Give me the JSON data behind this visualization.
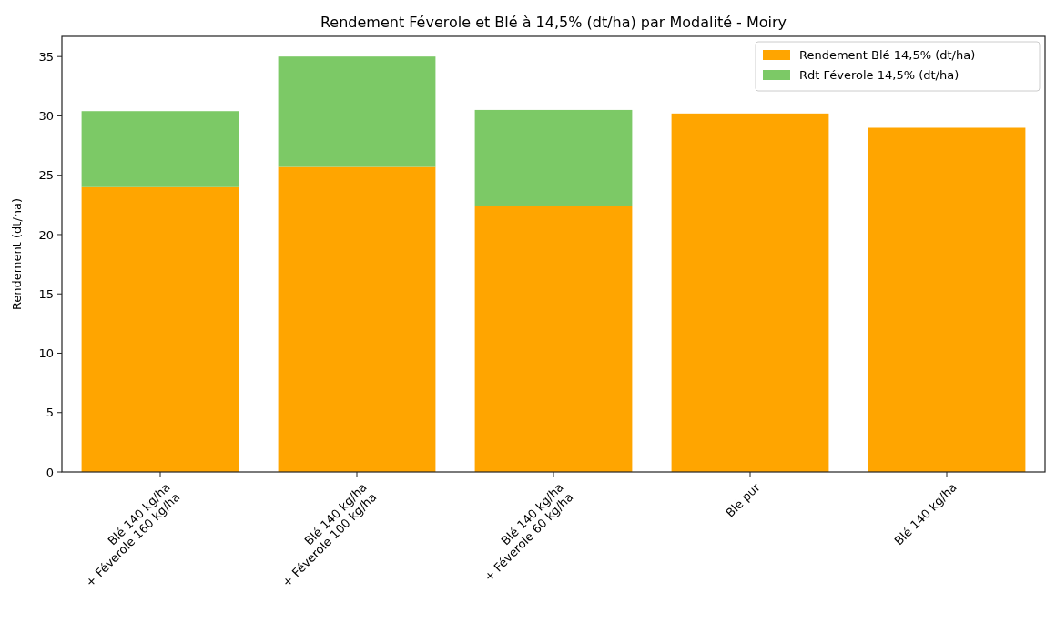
{
  "chart_data": {
    "type": "bar",
    "title": "Rendement Féverole et Blé à 14,5% (dt/ha) par Modalité - Moiry",
    "ylabel": "Rendement (dt/ha)",
    "categories": [
      "Blé 140 kg/ha\n+ Féverole 160 kg/ha",
      "Blé 140 kg/ha\n+ Féverole 100 kg/ha",
      "Blé 140 kg/ha\n+ Féverole 60 kg/ha",
      "Blé pur",
      "Blé 140 kg/ha"
    ],
    "stacked": true,
    "series": [
      {
        "name": "Rendement Blé 14,5% (dt/ha)",
        "color": "#ffa500",
        "values": [
          24.0,
          25.7,
          22.4,
          30.2,
          29.0
        ]
      },
      {
        "name": "Rdt Féverole 14,5% (dt/ha)",
        "color": "#7cc966",
        "values": [
          6.4,
          9.3,
          8.1,
          null,
          null
        ]
      }
    ],
    "ylim": [
      0,
      36.7
    ],
    "yticks": [
      0,
      5,
      10,
      15,
      20,
      25,
      30,
      35
    ],
    "legend": "top right"
  }
}
